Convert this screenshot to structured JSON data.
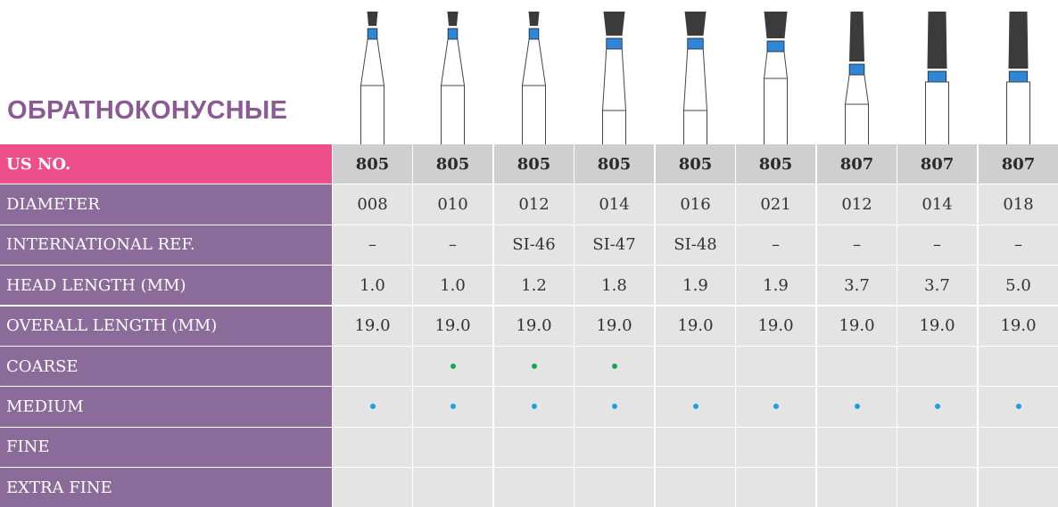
{
  "title": "ОБРАТНОКОНУСНЫЕ",
  "colors": {
    "coarse_dot": "#1aa34a",
    "medium_dot": "#1aa0e0",
    "band": "#2f86d6",
    "label_bg": "#8b6b9a",
    "header_bg": "#ee4e8a"
  },
  "burs": [
    {
      "head_level": 1,
      "head_length": "short"
    },
    {
      "head_level": 1,
      "head_length": "short"
    },
    {
      "head_level": 1,
      "head_length": "short"
    },
    {
      "head_level": 2,
      "head_length": "short"
    },
    {
      "head_level": 2,
      "head_length": "short"
    },
    {
      "head_level": 3,
      "head_length": "short"
    },
    {
      "head_level": 2,
      "head_length": "long"
    },
    {
      "head_level": 3,
      "head_length": "long"
    },
    {
      "head_level": 3,
      "head_length": "long"
    }
  ],
  "rows": [
    {
      "label": "US NO.",
      "header": true,
      "values": [
        "805",
        "805",
        "805",
        "805",
        "805",
        "805",
        "807",
        "807",
        "807"
      ]
    },
    {
      "label": "DIAMETER",
      "values": [
        "008",
        "010",
        "012",
        "014",
        "016",
        "021",
        "012",
        "014",
        "018"
      ]
    },
    {
      "label": "INTERNATIONAL REF.",
      "values": [
        "–",
        "–",
        "SI-46",
        "SI-47",
        "SI-48",
        "–",
        "–",
        "–",
        "–"
      ]
    },
    {
      "label": "HEAD LENGTH (MM)",
      "values": [
        "1.0",
        "1.0",
        "1.2",
        "1.8",
        "1.9",
        "1.9",
        "3.7",
        "3.7",
        "5.0"
      ]
    },
    {
      "label": "OVERALL LENGTH (MM)",
      "values": [
        "19.0",
        "19.0",
        "19.0",
        "19.0",
        "19.0",
        "19.0",
        "19.0",
        "19.0",
        "19.0"
      ]
    },
    {
      "label": "COARSE",
      "dot": "coarse",
      "marks": [
        false,
        true,
        true,
        true,
        false,
        false,
        false,
        false,
        false
      ]
    },
    {
      "label": "MEDIUM",
      "dot": "medium",
      "marks": [
        true,
        true,
        true,
        true,
        true,
        true,
        true,
        true,
        true
      ]
    },
    {
      "label": "FINE",
      "dot": "fine",
      "marks": [
        false,
        false,
        false,
        false,
        false,
        false,
        false,
        false,
        false
      ]
    },
    {
      "label": "EXTRA FINE",
      "dot": "extra-fine",
      "marks": [
        false,
        false,
        false,
        false,
        false,
        false,
        false,
        false,
        false
      ]
    }
  ]
}
